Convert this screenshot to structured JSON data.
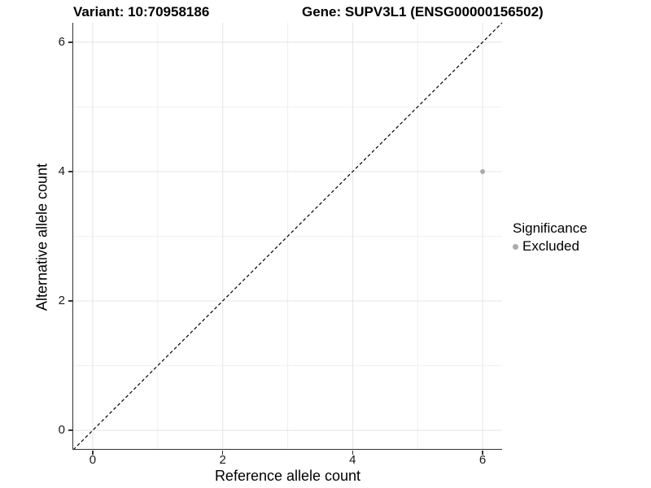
{
  "titles": {
    "variant": "Variant: 10:70958186",
    "gene": "Gene: SUPV3L1 (ENSG00000156502)"
  },
  "chart_data": {
    "type": "scatter",
    "title_left": "Variant: 10:70958186",
    "title_right": "Gene: SUPV3L1 (ENSG00000156502)",
    "xlabel": "Reference allele count",
    "ylabel": "Alternative allele count",
    "xlim": [
      -0.3,
      6.3
    ],
    "ylim": [
      -0.3,
      6.3
    ],
    "x_ticks": [
      0,
      2,
      4,
      6
    ],
    "y_ticks": [
      0,
      2,
      4,
      6
    ],
    "x_minor": [
      1,
      3,
      5
    ],
    "y_minor": [
      1,
      3,
      5
    ],
    "grid": "on",
    "series": [
      {
        "name": "Excluded",
        "color": "#aaaaaa",
        "points": [
          {
            "x": 6,
            "y": 4
          }
        ]
      }
    ],
    "reference_line": {
      "type": "identity",
      "from": -0.3,
      "to": 6.3,
      "style": "dashed",
      "color": "#000000"
    },
    "legend": {
      "title": "Significance",
      "position": "right",
      "entries": [
        {
          "label": "Excluded",
          "color": "#aaaaaa"
        }
      ]
    }
  },
  "colors": {
    "background": "#ffffff",
    "grid_major": "#e4e4e4",
    "grid_minor": "#f0f0f0",
    "axis_line": "#333333",
    "point": "#aaaaaa",
    "text": "#000000"
  }
}
